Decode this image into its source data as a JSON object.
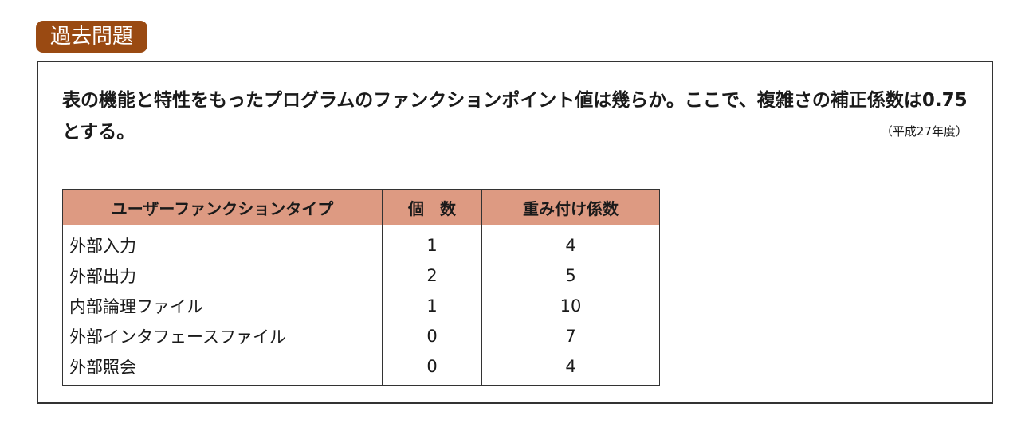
{
  "badge": "過去問題",
  "question": {
    "text": "表の機能と特性をもったプログラムのファンクションポイント値は幾らか。ここで、複雑さの補正係数は0.75とする。",
    "source": "（平成27年度）"
  },
  "table": {
    "headers": [
      "ユーザーファンクションタイプ",
      "個　数",
      "重み付け係数"
    ],
    "rows": [
      [
        "外部入力",
        "1",
        "4"
      ],
      [
        "外部出力",
        "2",
        "5"
      ],
      [
        "内部論理ファイル",
        "1",
        "10"
      ],
      [
        "外部インタフェースファイル",
        "0",
        "7"
      ],
      [
        "外部照会",
        "0",
        "4"
      ]
    ]
  },
  "colors": {
    "badge": "#9a4a12",
    "header": "#dd9a82"
  }
}
